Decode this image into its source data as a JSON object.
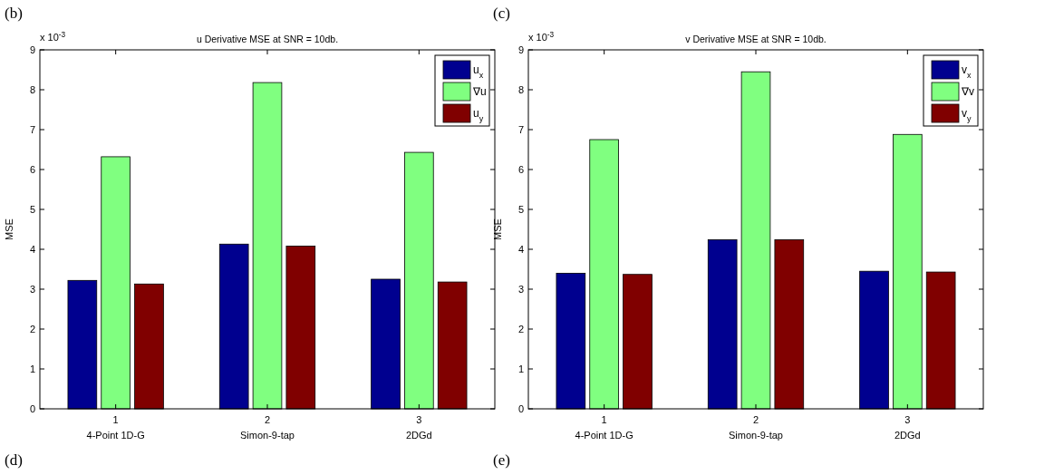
{
  "chart_data": [
    {
      "type": "bar",
      "title": "u Derivative MSE at SNR = 10db.",
      "ylabel": "MSE",
      "categories": [
        "1\n4-Point 1D-G",
        "2\nSimon-9-tap",
        "3\n2DGd"
      ],
      "series": [
        {
          "name": "u$_{x}$",
          "color": "#00008f",
          "values": [
            3.22,
            4.13,
            3.25
          ]
        },
        {
          "name": "∇u",
          "color": "#80ff80",
          "values": [
            6.32,
            8.18,
            6.43
          ]
        },
        {
          "name": "u$_{y}$",
          "color": "#800000",
          "values": [
            3.13,
            4.08,
            3.18
          ]
        }
      ],
      "ylim": [
        0,
        9
      ],
      "yticks": [
        0,
        1,
        2,
        3,
        4,
        5,
        6,
        7,
        8,
        9
      ],
      "legend": "top right",
      "annotations": [
        "(b)",
        "x 10$^{-3}$",
        "(d)"
      ]
    },
    {
      "type": "bar",
      "title": "v Derivative MSE at SNR = 10db.",
      "ylabel": "MSE",
      "categories": [
        "1\n4-Point 1D-G",
        "2\nSimon-9-tap",
        "3\n2DGd"
      ],
      "series": [
        {
          "name": "v$_{x}$",
          "color": "#00008f",
          "values": [
            3.4,
            4.24,
            3.45
          ]
        },
        {
          "name": "∇v",
          "color": "#80ff80",
          "values": [
            6.75,
            8.45,
            6.88
          ]
        },
        {
          "name": "v$_{y}$",
          "color": "#800000",
          "values": [
            3.37,
            4.24,
            3.43
          ]
        }
      ],
      "ylim": [
        0,
        9
      ],
      "yticks": [
        0,
        1,
        2,
        3,
        4,
        5,
        6,
        7,
        8,
        9
      ],
      "legend": "top right",
      "annotations": [
        "(c)",
        "x 10$^{-3}$",
        "(e)"
      ]
    }
  ]
}
